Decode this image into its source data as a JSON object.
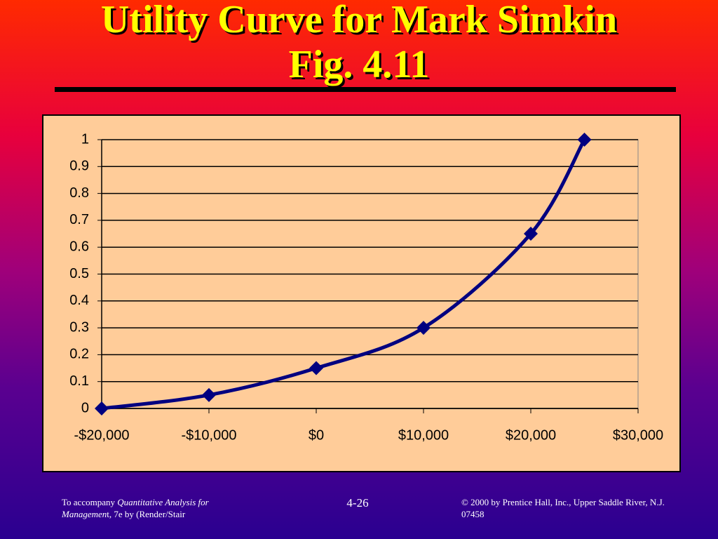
{
  "chart_data": {
    "type": "line",
    "title": "Utility Curve for Mark Simkin",
    "subtitle": "Fig. 4.11",
    "x": [
      -20000,
      -10000,
      0,
      10000,
      20000,
      25000
    ],
    "series": [
      {
        "color": "#000080",
        "values": [
          0,
          0.05,
          0.15,
          0.3,
          0.65,
          1
        ]
      }
    ],
    "xlim": [
      -20000,
      30000
    ],
    "xticks": [
      {
        "value": -20000,
        "label": "-$20,000"
      },
      {
        "value": -10000,
        "label": "-$10,000"
      },
      {
        "value": 0,
        "label": "$0"
      },
      {
        "value": 10000,
        "label": "$10,000"
      },
      {
        "value": 20000,
        "label": "$20,000"
      },
      {
        "value": 30000,
        "label": "$30,000"
      }
    ],
    "ylim": [
      0,
      1
    ],
    "yticks": [
      0,
      0.1,
      0.2,
      0.3,
      0.4,
      0.5,
      0.6,
      0.7,
      0.8,
      0.9,
      1
    ],
    "grid": true,
    "smooth": true,
    "marker": "diamond",
    "background": "#ffcc99"
  },
  "footer": {
    "left_text": "To accompany ",
    "left_italic": "Quantitative Analysis for Managemen",
    "left_tail": "t, 7e by (Render/Stair",
    "center": "4-26",
    "right": "© 2000 by Prentice Hall, Inc., Upper Saddle River, N.J. 07458"
  }
}
